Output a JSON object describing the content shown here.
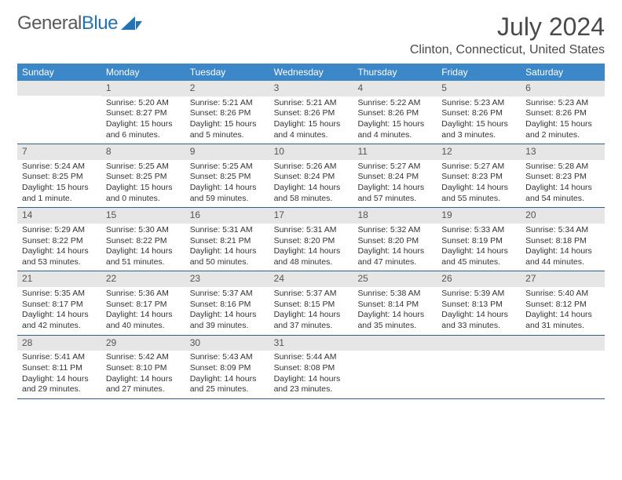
{
  "brand": {
    "part1": "General",
    "part2": "Blue"
  },
  "title": "July 2024",
  "location": "Clinton, Connecticut, United States",
  "colors": {
    "header_bg": "#3b87c8",
    "daynum_bg": "#e6e6e6",
    "row_border": "#2c5f8d",
    "brand_blue": "#2273b5",
    "text_gray": "#4a4a4a"
  },
  "weekdays": [
    "Sunday",
    "Monday",
    "Tuesday",
    "Wednesday",
    "Thursday",
    "Friday",
    "Saturday"
  ],
  "weeks": [
    [
      null,
      {
        "n": "1",
        "sr": "Sunrise: 5:20 AM",
        "ss": "Sunset: 8:27 PM",
        "dl": "Daylight: 15 hours and 6 minutes."
      },
      {
        "n": "2",
        "sr": "Sunrise: 5:21 AM",
        "ss": "Sunset: 8:26 PM",
        "dl": "Daylight: 15 hours and 5 minutes."
      },
      {
        "n": "3",
        "sr": "Sunrise: 5:21 AM",
        "ss": "Sunset: 8:26 PM",
        "dl": "Daylight: 15 hours and 4 minutes."
      },
      {
        "n": "4",
        "sr": "Sunrise: 5:22 AM",
        "ss": "Sunset: 8:26 PM",
        "dl": "Daylight: 15 hours and 4 minutes."
      },
      {
        "n": "5",
        "sr": "Sunrise: 5:23 AM",
        "ss": "Sunset: 8:26 PM",
        "dl": "Daylight: 15 hours and 3 minutes."
      },
      {
        "n": "6",
        "sr": "Sunrise: 5:23 AM",
        "ss": "Sunset: 8:26 PM",
        "dl": "Daylight: 15 hours and 2 minutes."
      }
    ],
    [
      {
        "n": "7",
        "sr": "Sunrise: 5:24 AM",
        "ss": "Sunset: 8:25 PM",
        "dl": "Daylight: 15 hours and 1 minute."
      },
      {
        "n": "8",
        "sr": "Sunrise: 5:25 AM",
        "ss": "Sunset: 8:25 PM",
        "dl": "Daylight: 15 hours and 0 minutes."
      },
      {
        "n": "9",
        "sr": "Sunrise: 5:25 AM",
        "ss": "Sunset: 8:25 PM",
        "dl": "Daylight: 14 hours and 59 minutes."
      },
      {
        "n": "10",
        "sr": "Sunrise: 5:26 AM",
        "ss": "Sunset: 8:24 PM",
        "dl": "Daylight: 14 hours and 58 minutes."
      },
      {
        "n": "11",
        "sr": "Sunrise: 5:27 AM",
        "ss": "Sunset: 8:24 PM",
        "dl": "Daylight: 14 hours and 57 minutes."
      },
      {
        "n": "12",
        "sr": "Sunrise: 5:27 AM",
        "ss": "Sunset: 8:23 PM",
        "dl": "Daylight: 14 hours and 55 minutes."
      },
      {
        "n": "13",
        "sr": "Sunrise: 5:28 AM",
        "ss": "Sunset: 8:23 PM",
        "dl": "Daylight: 14 hours and 54 minutes."
      }
    ],
    [
      {
        "n": "14",
        "sr": "Sunrise: 5:29 AM",
        "ss": "Sunset: 8:22 PM",
        "dl": "Daylight: 14 hours and 53 minutes."
      },
      {
        "n": "15",
        "sr": "Sunrise: 5:30 AM",
        "ss": "Sunset: 8:22 PM",
        "dl": "Daylight: 14 hours and 51 minutes."
      },
      {
        "n": "16",
        "sr": "Sunrise: 5:31 AM",
        "ss": "Sunset: 8:21 PM",
        "dl": "Daylight: 14 hours and 50 minutes."
      },
      {
        "n": "17",
        "sr": "Sunrise: 5:31 AM",
        "ss": "Sunset: 8:20 PM",
        "dl": "Daylight: 14 hours and 48 minutes."
      },
      {
        "n": "18",
        "sr": "Sunrise: 5:32 AM",
        "ss": "Sunset: 8:20 PM",
        "dl": "Daylight: 14 hours and 47 minutes."
      },
      {
        "n": "19",
        "sr": "Sunrise: 5:33 AM",
        "ss": "Sunset: 8:19 PM",
        "dl": "Daylight: 14 hours and 45 minutes."
      },
      {
        "n": "20",
        "sr": "Sunrise: 5:34 AM",
        "ss": "Sunset: 8:18 PM",
        "dl": "Daylight: 14 hours and 44 minutes."
      }
    ],
    [
      {
        "n": "21",
        "sr": "Sunrise: 5:35 AM",
        "ss": "Sunset: 8:17 PM",
        "dl": "Daylight: 14 hours and 42 minutes."
      },
      {
        "n": "22",
        "sr": "Sunrise: 5:36 AM",
        "ss": "Sunset: 8:17 PM",
        "dl": "Daylight: 14 hours and 40 minutes."
      },
      {
        "n": "23",
        "sr": "Sunrise: 5:37 AM",
        "ss": "Sunset: 8:16 PM",
        "dl": "Daylight: 14 hours and 39 minutes."
      },
      {
        "n": "24",
        "sr": "Sunrise: 5:37 AM",
        "ss": "Sunset: 8:15 PM",
        "dl": "Daylight: 14 hours and 37 minutes."
      },
      {
        "n": "25",
        "sr": "Sunrise: 5:38 AM",
        "ss": "Sunset: 8:14 PM",
        "dl": "Daylight: 14 hours and 35 minutes."
      },
      {
        "n": "26",
        "sr": "Sunrise: 5:39 AM",
        "ss": "Sunset: 8:13 PM",
        "dl": "Daylight: 14 hours and 33 minutes."
      },
      {
        "n": "27",
        "sr": "Sunrise: 5:40 AM",
        "ss": "Sunset: 8:12 PM",
        "dl": "Daylight: 14 hours and 31 minutes."
      }
    ],
    [
      {
        "n": "28",
        "sr": "Sunrise: 5:41 AM",
        "ss": "Sunset: 8:11 PM",
        "dl": "Daylight: 14 hours and 29 minutes."
      },
      {
        "n": "29",
        "sr": "Sunrise: 5:42 AM",
        "ss": "Sunset: 8:10 PM",
        "dl": "Daylight: 14 hours and 27 minutes."
      },
      {
        "n": "30",
        "sr": "Sunrise: 5:43 AM",
        "ss": "Sunset: 8:09 PM",
        "dl": "Daylight: 14 hours and 25 minutes."
      },
      {
        "n": "31",
        "sr": "Sunrise: 5:44 AM",
        "ss": "Sunset: 8:08 PM",
        "dl": "Daylight: 14 hours and 23 minutes."
      },
      null,
      null,
      null
    ]
  ]
}
